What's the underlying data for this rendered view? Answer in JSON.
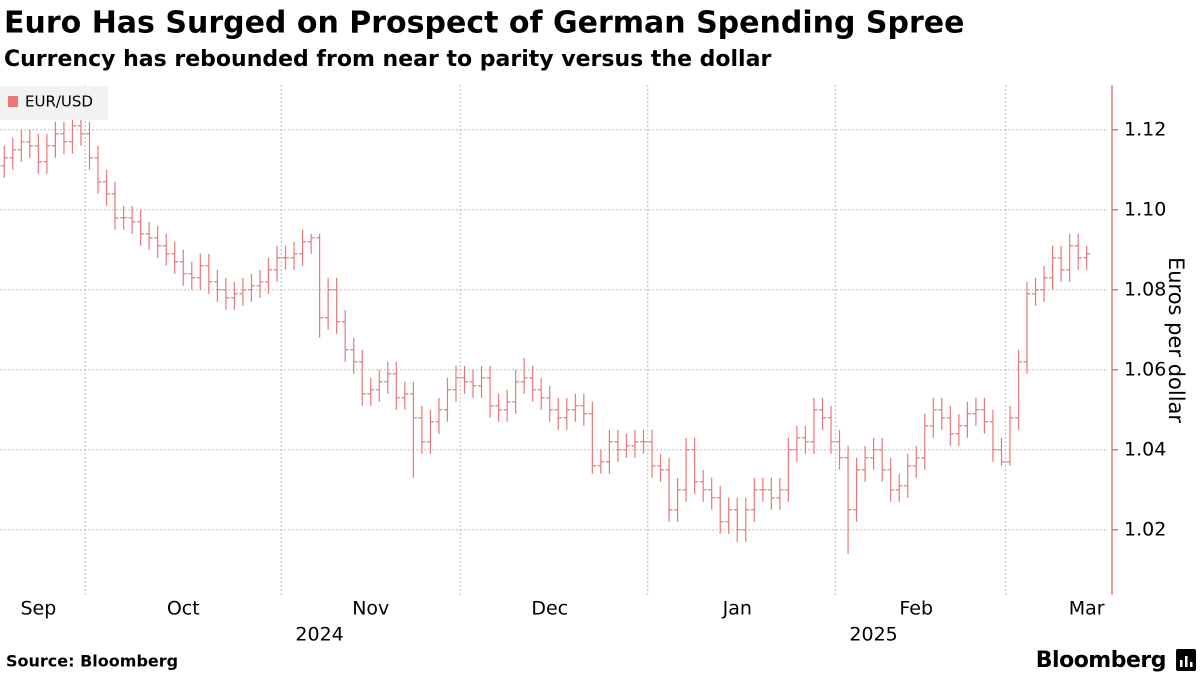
{
  "chart_data": {
    "type": "ohlc",
    "title": "Euro Has Surged on Prospect of German Spending Spree",
    "subtitle": "Currency has rebounded from near to parity versus the dollar",
    "y_axis_label": "Euros per dollar",
    "source": "Source: Bloomberg",
    "brand": "Bloomberg",
    "legend": "top-left",
    "grid": true,
    "categories": [
      null,
      null,
      null,
      null,
      "Sep",
      null,
      null,
      null,
      null,
      null,
      null,
      null,
      null,
      null,
      null,
      null,
      null,
      null,
      null,
      null,
      null,
      "Oct",
      null,
      null,
      null,
      null,
      null,
      null,
      null,
      null,
      null,
      null,
      null,
      null,
      null,
      null,
      null,
      null,
      null,
      null,
      null,
      null,
      null,
      "Nov",
      null,
      null,
      null,
      null,
      null,
      null,
      null,
      null,
      null,
      null,
      null,
      null,
      null,
      null,
      null,
      null,
      null,
      null,
      null,
      null,
      "Dec",
      null,
      null,
      null,
      null,
      null,
      null,
      null,
      null,
      null,
      null,
      null,
      null,
      null,
      null,
      null,
      null,
      null,
      null,
      null,
      null,
      null,
      "Jan",
      null,
      null,
      null,
      null,
      null,
      null,
      null,
      null,
      null,
      null,
      null,
      null,
      null,
      null,
      null,
      null,
      null,
      null,
      null,
      null,
      "Feb",
      null,
      null,
      null,
      null,
      null,
      null,
      null,
      null,
      null,
      null,
      null,
      null,
      null,
      null,
      null,
      null,
      null,
      null,
      null,
      "Mar"
    ],
    "year_labels": [
      null,
      null,
      null,
      null,
      null,
      null,
      null,
      null,
      null,
      null,
      null,
      null,
      null,
      null,
      null,
      null,
      null,
      null,
      null,
      null,
      null,
      null,
      null,
      null,
      null,
      null,
      null,
      null,
      null,
      null,
      null,
      null,
      null,
      null,
      null,
      null,
      null,
      "2024",
      null,
      null,
      null,
      null,
      null,
      null,
      null,
      null,
      null,
      null,
      null,
      null,
      null,
      null,
      null,
      null,
      null,
      null,
      null,
      null,
      null,
      null,
      null,
      null,
      null,
      null,
      null,
      null,
      null,
      null,
      null,
      null,
      null,
      null,
      null,
      null,
      null,
      null,
      null,
      null,
      null,
      null,
      null,
      null,
      null,
      null,
      null,
      null,
      null,
      null,
      null,
      null,
      null,
      null,
      null,
      null,
      null,
      null,
      null,
      null,
      null,
      null,
      null,
      null,
      "2025",
      null,
      null,
      null,
      null,
      null,
      null,
      null,
      null,
      null,
      null,
      null,
      null,
      null,
      null,
      null,
      null,
      null,
      null,
      null,
      null,
      null,
      null,
      null,
      null,
      null
    ],
    "xlim": [
      -0.5,
      129.5
    ],
    "xticks": [
      9.5,
      32.5,
      53.5,
      75.5,
      97.5,
      117.5
    ],
    "ylim": [
      1.0037,
      1.1312
    ],
    "yticks": [
      1.02,
      1.04,
      1.06,
      1.08,
      {
        "value": 1.1,
        "label": "1.10"
      },
      1.12
    ],
    "series": [
      {
        "name": "EUR/USD",
        "color": "#e8787a",
        "open": [
          1.111,
          1.113,
          1.115,
          1.117,
          1.116,
          1.112,
          1.116,
          1.119,
          1.117,
          1.121,
          1.119,
          1.113,
          1.107,
          1.104,
          1.098,
          1.098,
          1.097,
          1.094,
          1.093,
          1.091,
          1.089,
          1.087,
          1.084,
          1.083,
          1.086,
          1.082,
          1.08,
          1.078,
          1.079,
          1.08,
          1.081,
          1.082,
          1.085,
          1.088,
          1.088,
          1.089,
          1.092,
          1.093,
          1.073,
          1.08,
          1.072,
          1.065,
          1.062,
          1.054,
          1.055,
          1.057,
          1.059,
          1.053,
          1.054,
          1.048,
          1.042,
          1.047,
          1.05,
          1.055,
          1.058,
          1.057,
          1.056,
          1.058,
          1.051,
          1.05,
          1.052,
          1.057,
          1.058,
          1.055,
          1.053,
          1.05,
          1.048,
          1.05,
          1.051,
          1.049,
          1.036,
          1.037,
          1.042,
          1.04,
          1.041,
          1.042,
          1.042,
          1.036,
          1.035,
          1.025,
          1.03,
          1.04,
          1.032,
          1.03,
          1.028,
          1.022,
          1.025,
          1.02,
          1.025,
          1.03,
          1.03,
          1.028,
          1.03,
          1.04,
          1.043,
          1.042,
          1.05,
          1.048,
          1.042,
          1.038,
          1.025,
          1.035,
          1.038,
          1.04,
          1.035,
          1.03,
          1.031,
          1.036,
          1.038,
          1.046,
          1.05,
          1.048,
          1.044,
          1.046,
          1.049,
          1.05,
          1.047,
          1.04,
          1.037,
          1.048,
          1.062,
          1.079,
          1.08,
          1.083,
          1.088,
          1.085,
          1.091,
          1.088
        ],
        "high": [
          1.116,
          1.118,
          1.12,
          1.12,
          1.119,
          1.119,
          1.122,
          1.122,
          1.124,
          1.124,
          1.122,
          1.116,
          1.11,
          1.107,
          1.101,
          1.101,
          1.1,
          1.097,
          1.096,
          1.094,
          1.092,
          1.09,
          1.087,
          1.089,
          1.089,
          1.085,
          1.083,
          1.082,
          1.083,
          1.084,
          1.085,
          1.088,
          1.091,
          1.091,
          1.092,
          1.095,
          1.094,
          1.094,
          1.083,
          1.083,
          1.075,
          1.068,
          1.065,
          1.058,
          1.06,
          1.062,
          1.062,
          1.057,
          1.057,
          1.051,
          1.05,
          1.053,
          1.058,
          1.061,
          1.061,
          1.06,
          1.061,
          1.061,
          1.054,
          1.055,
          1.06,
          1.063,
          1.061,
          1.058,
          1.056,
          1.053,
          1.053,
          1.054,
          1.054,
          1.052,
          1.04,
          1.045,
          1.045,
          1.044,
          1.045,
          1.045,
          1.045,
          1.039,
          1.038,
          1.033,
          1.043,
          1.043,
          1.035,
          1.033,
          1.031,
          1.028,
          1.028,
          1.028,
          1.033,
          1.033,
          1.033,
          1.033,
          1.043,
          1.046,
          1.046,
          1.053,
          1.053,
          1.051,
          1.045,
          1.041,
          1.038,
          1.041,
          1.043,
          1.043,
          1.038,
          1.034,
          1.039,
          1.041,
          1.049,
          1.053,
          1.053,
          1.051,
          1.049,
          1.052,
          1.053,
          1.053,
          1.05,
          1.043,
          1.051,
          1.065,
          1.082,
          1.083,
          1.086,
          1.091,
          1.091,
          1.094,
          1.094,
          1.091
        ],
        "low": [
          1.108,
          1.11,
          1.112,
          1.113,
          1.109,
          1.109,
          1.113,
          1.114,
          1.114,
          1.116,
          1.11,
          1.104,
          1.101,
          1.095,
          1.095,
          1.094,
          1.091,
          1.09,
          1.088,
          1.086,
          1.084,
          1.081,
          1.08,
          1.08,
          1.079,
          1.077,
          1.075,
          1.075,
          1.076,
          1.077,
          1.078,
          1.079,
          1.082,
          1.085,
          1.085,
          1.086,
          1.089,
          1.068,
          1.07,
          1.069,
          1.062,
          1.059,
          1.051,
          1.051,
          1.052,
          1.054,
          1.05,
          1.05,
          1.033,
          1.039,
          1.039,
          1.044,
          1.047,
          1.052,
          1.054,
          1.053,
          1.053,
          1.048,
          1.047,
          1.047,
          1.049,
          1.054,
          1.052,
          1.05,
          1.047,
          1.045,
          1.045,
          1.047,
          1.046,
          1.034,
          1.034,
          1.034,
          1.037,
          1.038,
          1.038,
          1.039,
          1.033,
          1.032,
          1.022,
          1.022,
          1.027,
          1.029,
          1.027,
          1.025,
          1.019,
          1.019,
          1.017,
          1.017,
          1.022,
          1.027,
          1.025,
          1.025,
          1.027,
          1.037,
          1.039,
          1.039,
          1.045,
          1.039,
          1.035,
          1.014,
          1.022,
          1.032,
          1.035,
          1.032,
          1.027,
          1.027,
          1.028,
          1.033,
          1.035,
          1.043,
          1.045,
          1.041,
          1.041,
          1.043,
          1.046,
          1.044,
          1.037,
          1.036,
          1.036,
          1.045,
          1.059,
          1.076,
          1.077,
          1.08,
          1.082,
          1.082,
          1.085,
          1.085
        ],
        "close": [
          1.113,
          1.115,
          1.117,
          1.116,
          1.112,
          1.116,
          1.119,
          1.117,
          1.121,
          1.119,
          1.113,
          1.107,
          1.104,
          1.098,
          1.098,
          1.097,
          1.094,
          1.093,
          1.091,
          1.089,
          1.087,
          1.084,
          1.083,
          1.086,
          1.082,
          1.08,
          1.078,
          1.079,
          1.08,
          1.081,
          1.082,
          1.085,
          1.088,
          1.088,
          1.089,
          1.092,
          1.093,
          1.073,
          1.08,
          1.072,
          1.065,
          1.062,
          1.054,
          1.055,
          1.057,
          1.059,
          1.053,
          1.054,
          1.048,
          1.042,
          1.047,
          1.05,
          1.055,
          1.058,
          1.057,
          1.056,
          1.058,
          1.051,
          1.05,
          1.052,
          1.057,
          1.058,
          1.055,
          1.053,
          1.05,
          1.048,
          1.05,
          1.051,
          1.049,
          1.036,
          1.037,
          1.042,
          1.04,
          1.041,
          1.042,
          1.042,
          1.036,
          1.035,
          1.025,
          1.03,
          1.04,
          1.032,
          1.03,
          1.028,
          1.022,
          1.025,
          1.02,
          1.025,
          1.03,
          1.03,
          1.028,
          1.03,
          1.04,
          1.043,
          1.042,
          1.05,
          1.048,
          1.042,
          1.038,
          1.025,
          1.035,
          1.038,
          1.04,
          1.035,
          1.03,
          1.031,
          1.036,
          1.038,
          1.046,
          1.05,
          1.048,
          1.044,
          1.046,
          1.049,
          1.05,
          1.047,
          1.04,
          1.037,
          1.048,
          1.062,
          1.079,
          1.08,
          1.083,
          1.088,
          1.085,
          1.091,
          1.088,
          1.089
        ]
      }
    ]
  }
}
